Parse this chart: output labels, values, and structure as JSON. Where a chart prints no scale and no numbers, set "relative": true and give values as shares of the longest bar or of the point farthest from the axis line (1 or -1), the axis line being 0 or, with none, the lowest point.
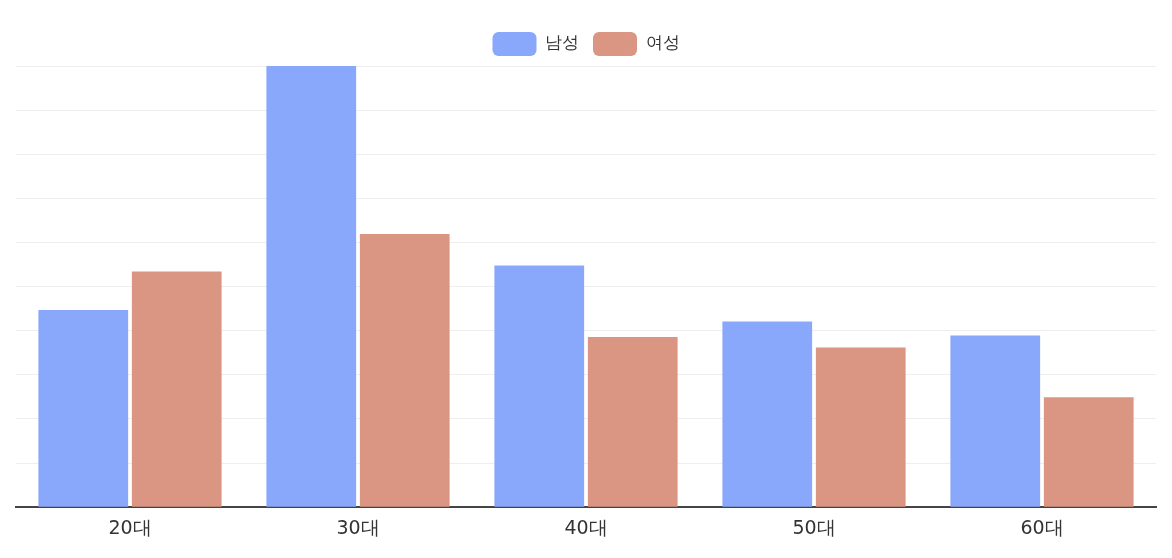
{
  "chart_data": {
    "type": "bar",
    "relative": true,
    "categories": [
      "20대",
      "30대",
      "40대",
      "50대",
      "60대"
    ],
    "series": [
      {
        "name": "남성",
        "color": "#8aa8fb",
        "values": [
          0.447,
          1,
          0.548,
          0.421,
          0.389
        ]
      },
      {
        "name": "여성",
        "color": "#da9682",
        "values": [
          0.534,
          0.619,
          0.386,
          0.362,
          0.249
        ]
      }
    ],
    "legend": "top",
    "grid": "y"
  }
}
